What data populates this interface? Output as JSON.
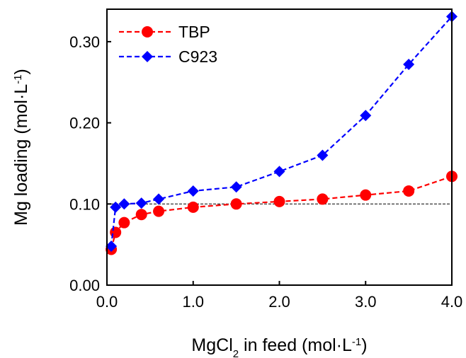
{
  "chart_data": {
    "type": "line",
    "xlabel": {
      "parts": [
        {
          "text": "MgCl",
          "style": "normal"
        },
        {
          "text": "2",
          "style": "sub"
        },
        {
          "text": " in feed (mol·L",
          "style": "normal"
        },
        {
          "text": "-1",
          "style": "sup"
        },
        {
          "text": ")",
          "style": "normal"
        }
      ]
    },
    "ylabel": {
      "parts": [
        {
          "text": "Mg loading (mol·L",
          "style": "normal"
        },
        {
          "text": "-1",
          "style": "sup"
        },
        {
          "text": ")",
          "style": "normal"
        }
      ]
    },
    "xlim": [
      0,
      4.0
    ],
    "ylim": [
      0,
      0.34
    ],
    "xticks": [
      {
        "value": 0,
        "label": "0.0"
      },
      {
        "value": 1,
        "label": "1.0"
      },
      {
        "value": 2,
        "label": "2.0"
      },
      {
        "value": 3,
        "label": "3.0"
      },
      {
        "value": 4,
        "label": "4.0"
      }
    ],
    "yticks": [
      {
        "value": 0,
        "label": "0.00"
      },
      {
        "value": 0.1,
        "label": "0.10"
      },
      {
        "value": 0.2,
        "label": "0.20"
      },
      {
        "value": 0.3,
        "label": "0.30"
      }
    ],
    "reference_line": {
      "y": 0.1,
      "style": "dashed",
      "color": "#000000"
    },
    "legend_position": "top-left",
    "series": [
      {
        "name": "TBP",
        "color": "#ff0000",
        "marker": "circle",
        "line_style": "dashed",
        "x": [
          0.05,
          0.1,
          0.2,
          0.4,
          0.6,
          1.0,
          1.5,
          2.0,
          2.5,
          3.0,
          3.5,
          4.0
        ],
        "y": [
          0.044,
          0.065,
          0.077,
          0.087,
          0.091,
          0.096,
          0.1,
          0.103,
          0.106,
          0.111,
          0.116,
          0.134
        ]
      },
      {
        "name": "C923",
        "color": "#0000ff",
        "marker": "diamond",
        "line_style": "dashed",
        "x": [
          0.05,
          0.1,
          0.2,
          0.4,
          0.6,
          1.0,
          1.5,
          2.0,
          2.5,
          3.0,
          3.5,
          4.0
        ],
        "y": [
          0.048,
          0.096,
          0.1,
          0.101,
          0.106,
          0.116,
          0.121,
          0.14,
          0.16,
          0.209,
          0.272,
          0.331
        ]
      }
    ]
  }
}
